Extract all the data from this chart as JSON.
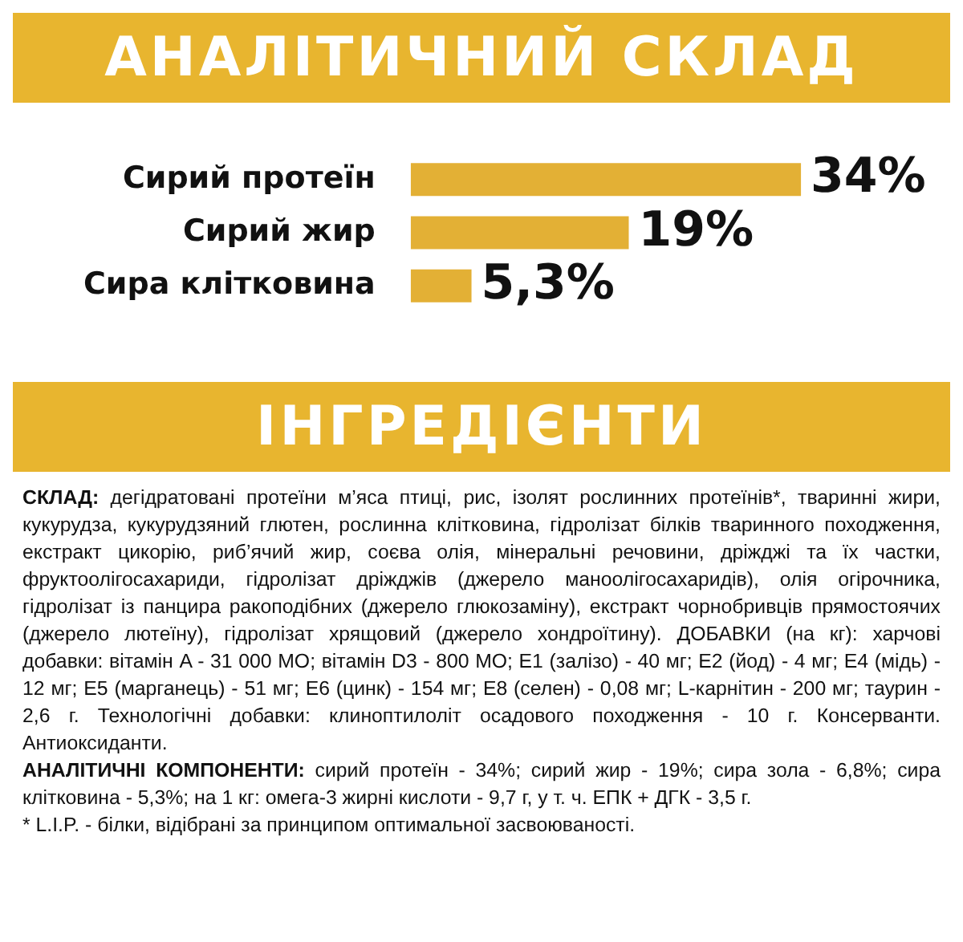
{
  "chart_data": {
    "type": "bar",
    "orientation": "horizontal",
    "title": "АНАЛІТИЧНИЙ СКЛАД",
    "categories": [
      "Сирий протеїн",
      "Сирий жир",
      "Сира клітковина"
    ],
    "values": [
      34,
      19,
      5.3
    ],
    "value_labels": [
      "34%",
      "19%",
      "5,3%"
    ],
    "color": "#e3b035",
    "legend": false,
    "annotations": [
      "ІНГРЕДІЄНТИ",
      "СКЛАД: дегідратовані протеїни м’яса птиці, рис, ізолят рослинних протеїнів*, тваринні жири, кукурудза, кукурудзяний глютен, рослинна клітковина, гідролізат білків тваринного походження, екстракт цикорію, риб’ячий жир, соєва олія, мінеральні речовини, дріжджі та їх частки, фруктоолігосахариди, гідролізат дріжджів (джерело маноолігосахаридів), олія огірочника, гідролізат із панцира ракоподібних (джерело глюкозаміну), екстракт чорнобривців прямостоячих (джерело лютеїну), гідролізат хрящовий (джерело хондроїтину). ДОБАВКИ (на кг): харчові добавки: вітамін A - 31 000 МО; вітамін D3 - 800 МО; E1 (залізо) - 40 мг; E2 (йод) - 4 мг; E4 (мідь) - 12 мг; E5 (марганець) - 51 мг; E6 (цинк) - 154 мг; E8 (селен) - 0,08 мг; L-карнітин - 200 мг; таурин - 2,6 г. Технологічні добавки: клиноптилоліт осадового походження - 10 г. Консерванти. Антиоксиданти.",
      "АНАЛІТИЧНІ КОМПОНЕНТИ: сирий протеїн - 34%; сирий жир - 19%; сира зола - 6,8%; сира клітковина - 5,3%; на 1 кг: омега-3 жирні кислоти - 9,7 г, у т. ч. ЕПК + ДГК - 3,5 г.",
      "* L.I.P. - білки, відібрані за принципом оптимальної засвоюваності."
    ]
  }
}
